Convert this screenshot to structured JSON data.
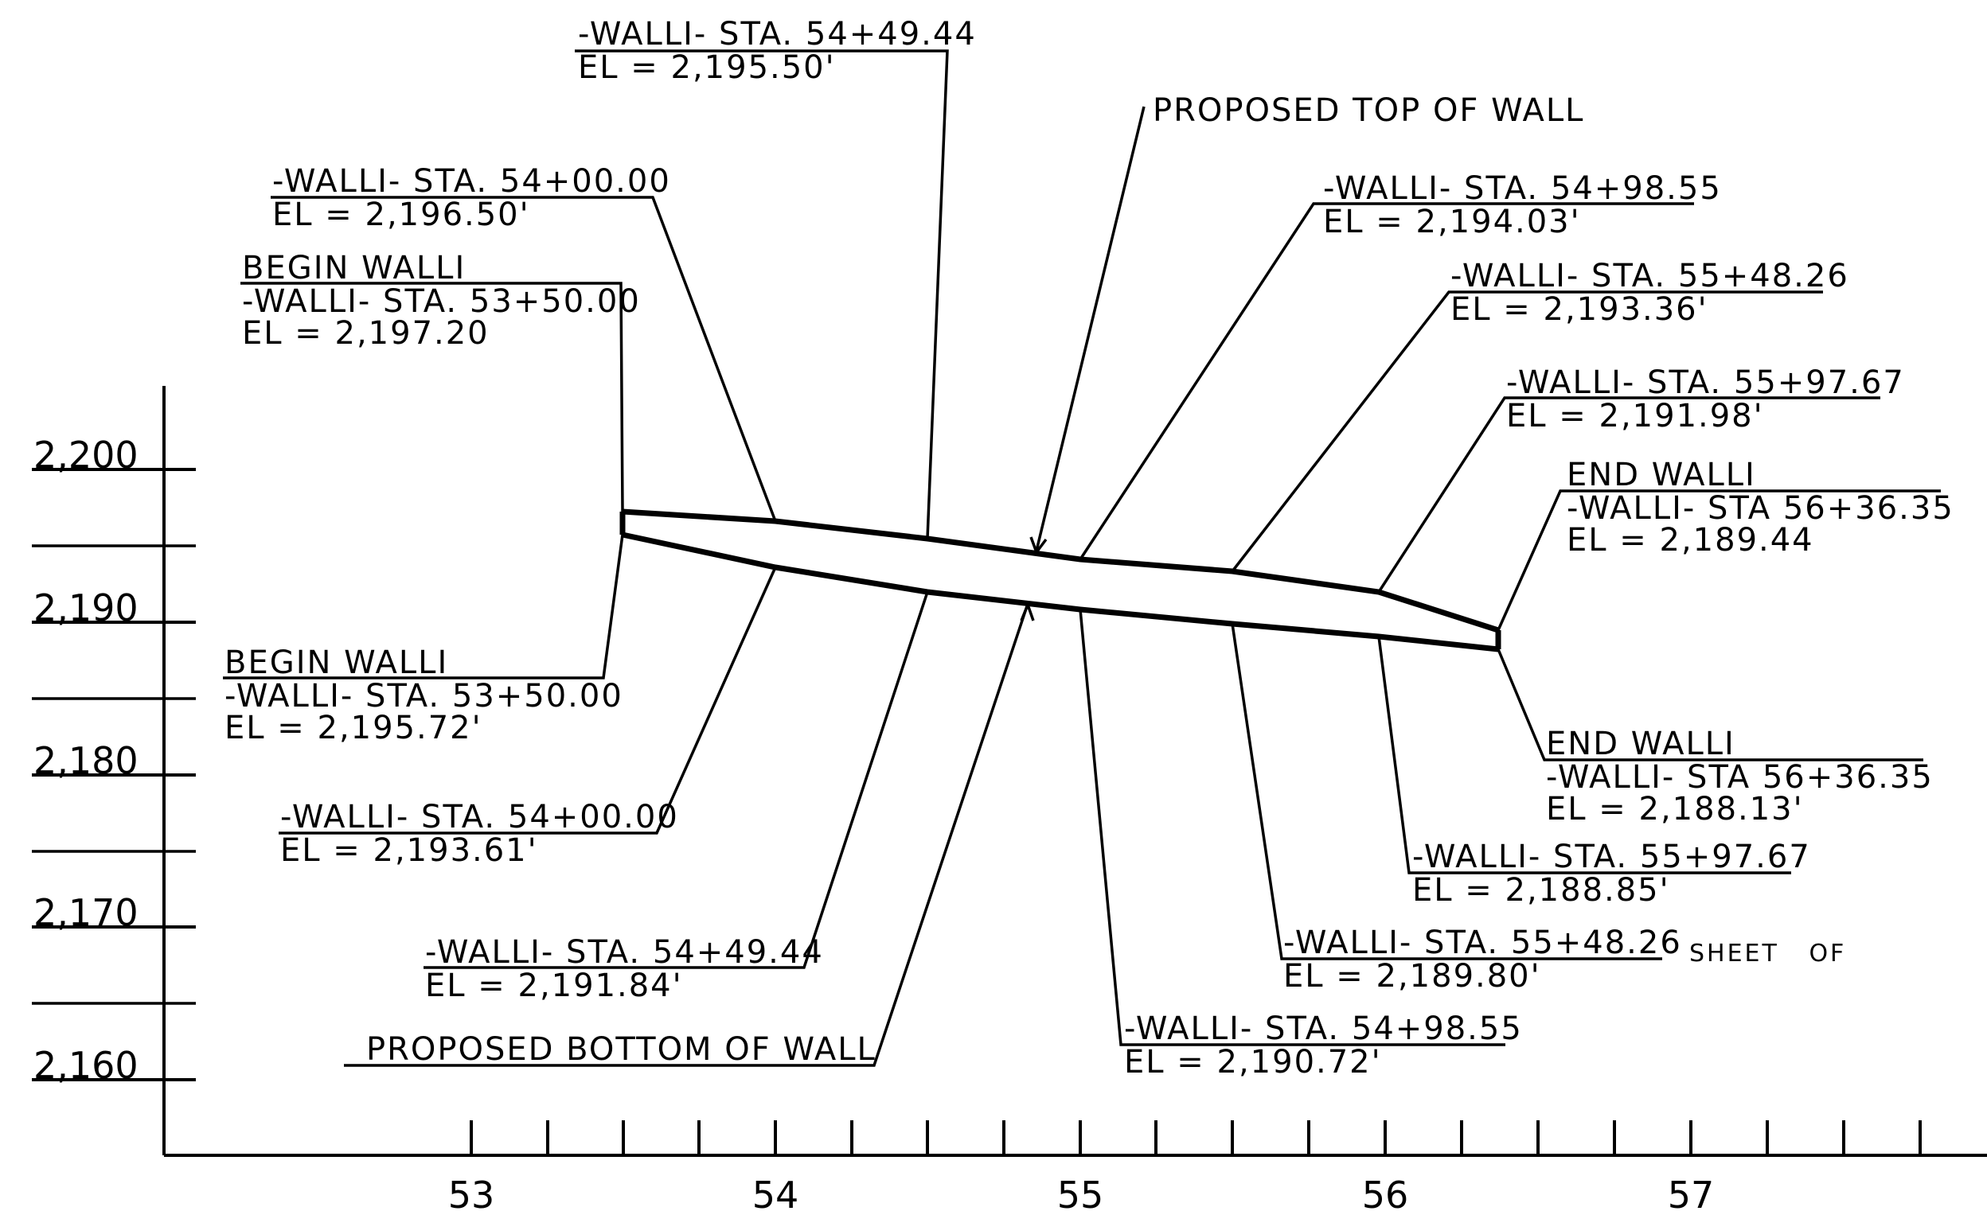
{
  "y_axis": {
    "ticks": [
      "2,200",
      "2,190",
      "2,180",
      "2,170",
      "2,160"
    ]
  },
  "x_axis": {
    "ticks": [
      "53",
      "54",
      "55",
      "56",
      "57"
    ]
  },
  "top_labels": [
    {
      "lines": [
        "-WALLI- STA. 54+49.44",
        "EL = 2,195.50'"
      ]
    },
    {
      "lines": [
        "-WALLI- STA. 54+00.00",
        "EL = 2,196.50'"
      ]
    },
    {
      "lines": [
        "BEGIN WALLI",
        "-WALLI- STA. 53+50.00",
        "EL = 2,197.20"
      ]
    },
    {
      "lines": [
        "PROPOSED TOP OF WALL"
      ]
    },
    {
      "lines": [
        "-WALLI- STA. 54+98.55",
        "EL = 2,194.03'"
      ]
    },
    {
      "lines": [
        "-WALLI- STA. 55+48.26",
        "EL = 2,193.36'"
      ]
    },
    {
      "lines": [
        "-WALLI- STA. 55+97.67",
        "EL = 2,191.98'"
      ]
    },
    {
      "lines": [
        "END WALLI",
        "-WALLI- STA 56+36.35",
        "EL = 2,189.44"
      ]
    }
  ],
  "bottom_labels": [
    {
      "lines": [
        "BEGIN WALLI",
        "-WALLI- STA. 53+50.00",
        "EL = 2,195.72'"
      ]
    },
    {
      "lines": [
        "-WALLI- STA. 54+00.00",
        "EL = 2,193.61'"
      ]
    },
    {
      "lines": [
        "-WALLI- STA. 54+49.44",
        "EL = 2,191.84'"
      ]
    },
    {
      "lines": [
        "PROPOSED BOTTOM OF WALL"
      ]
    },
    {
      "lines": [
        "-WALLI- STA. 54+98.55",
        "EL = 2,190.72'"
      ]
    },
    {
      "lines": [
        "-WALLI- STA. 55+48.26",
        "EL = 2,189.80'"
      ]
    },
    {
      "lines": [
        "-WALLI- STA. 55+97.67",
        "EL = 2,188.85'"
      ]
    },
    {
      "lines": [
        "END WALLI",
        "-WALLI- STA 56+36.35",
        "EL = 2,188.13'"
      ]
    }
  ],
  "sheet_label": "SHEET   OF"
}
